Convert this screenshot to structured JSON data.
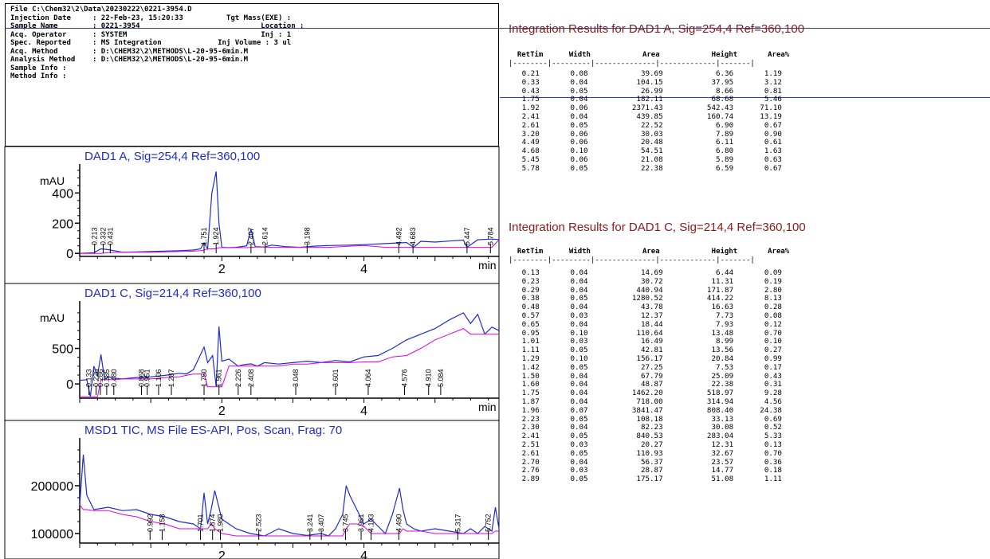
{
  "header": {
    "lines": [
      "File C:\\Chem32\\2\\Data\\20230222\\0221-3954.D",
      "Injection Date     : 22-Feb-23, 15:20:33          Tgt Mass(EXE) :",
      "Sample Name        : 0221-3954                            Location :",
      "Acq. Operator      : SYSTEM                               Inj : 1",
      "Spec. Reported     : MS Integration             Inj Volume : 3 ul",
      "Acq. Method        : D:\\CHEM32\\2\\METHODS\\L-20-95-6min.M",
      "Analysis Method    : D:\\CHEM32\\2\\METHODS\\L-20-95-6min.M",
      "Sample Info :",
      "Method Info :"
    ]
  },
  "colors": {
    "trace": "#1f2ccc",
    "baseline": "#e000e0",
    "title": "#1f2ccc",
    "table_title": "#8b1a1a",
    "divider": "#2c3fb0"
  },
  "chart_data": [
    {
      "type": "line",
      "title": "DAD1 A, Sig=254,4 Ref=360,100",
      "ylabel": "mAU",
      "xlabel": "min",
      "xlim": [
        0,
        5.9
      ],
      "ylim": [
        -20,
        560
      ],
      "yticks": [
        0,
        200,
        400
      ],
      "xticks": [
        2,
        4
      ],
      "series": [
        {
          "x": [
            0.0,
            0.2,
            0.3,
            0.4,
            0.6,
            0.8,
            1.0,
            1.2,
            1.4,
            1.6,
            1.7,
            1.75,
            1.8,
            1.86,
            1.92,
            1.96,
            2.0,
            2.1,
            2.2,
            2.35,
            2.41,
            2.47,
            2.6,
            2.7,
            2.9,
            3.1,
            3.3,
            3.5,
            3.8,
            4.0,
            4.3,
            4.6,
            4.7,
            4.8,
            5.0,
            5.2,
            5.4,
            5.45,
            5.6,
            5.8,
            5.9
          ],
          "y": [
            0,
            5,
            30,
            25,
            8,
            10,
            12,
            15,
            18,
            22,
            30,
            70,
            30,
            400,
            542,
            200,
            40,
            38,
            40,
            50,
            160,
            45,
            42,
            55,
            45,
            40,
            48,
            52,
            55,
            58,
            65,
            72,
            40,
            80,
            75,
            82,
            88,
            40,
            90,
            95,
            92
          ]
        }
      ],
      "peak_labels": [
        {
          "x": 0.21,
          "label": "0.213"
        },
        {
          "x": 0.33,
          "label": "0.332"
        },
        {
          "x": 0.43,
          "label": "0.431"
        },
        {
          "x": 1.75,
          "label": "1.751"
        },
        {
          "x": 1.92,
          "label": "1.924"
        },
        {
          "x": 2.41,
          "label": "2.407"
        },
        {
          "x": 2.61,
          "label": "2.614"
        },
        {
          "x": 3.2,
          "label": "3.198"
        },
        {
          "x": 4.49,
          "label": "4.492"
        },
        {
          "x": 4.69,
          "label": "4.683"
        },
        {
          "x": 5.45,
          "label": "5.447"
        },
        {
          "x": 5.78,
          "label": "5.784"
        }
      ]
    },
    {
      "type": "line",
      "title": "DAD1 C, Sig=214,4 Ref=360,100",
      "ylabel": "mAU",
      "xlabel": "min",
      "xlim": [
        0,
        5.9
      ],
      "ylim": [
        -200,
        1100
      ],
      "yticks": [
        0,
        500
      ],
      "xticks": [
        2,
        4
      ],
      "series": [
        {
          "x": [
            0.0,
            0.1,
            0.15,
            0.2,
            0.25,
            0.3,
            0.35,
            0.4,
            0.5,
            0.6,
            0.8,
            1.0,
            1.2,
            1.4,
            1.5,
            1.6,
            1.75,
            1.8,
            1.87,
            1.92,
            1.96,
            2.0,
            2.1,
            2.23,
            2.3,
            2.41,
            2.5,
            2.6,
            2.8,
            3.0,
            3.2,
            3.4,
            3.6,
            3.8,
            4.0,
            4.2,
            4.4,
            4.6,
            4.8,
            5.0,
            5.2,
            5.4,
            5.5,
            5.6,
            5.7,
            5.8,
            5.9
          ],
          "y": [
            50,
            60,
            -180,
            250,
            120,
            414,
            60,
            100,
            80,
            70,
            90,
            100,
            120,
            150,
            140,
            200,
            518,
            300,
            400,
            -40,
            808,
            320,
            350,
            250,
            270,
            283,
            250,
            300,
            280,
            300,
            320,
            300,
            330,
            310,
            380,
            400,
            500,
            620,
            700,
            780,
            900,
            1000,
            850,
            980,
            700,
            800,
            750
          ]
        }
      ],
      "peak_labels": [
        {
          "x": 0.13,
          "label": "0.133"
        },
        {
          "x": 0.23,
          "label": "0.226"
        },
        {
          "x": 0.29,
          "label": "0.286"
        },
        {
          "x": 0.38,
          "label": "0.385"
        },
        {
          "x": 0.48,
          "label": "0.480"
        },
        {
          "x": 0.87,
          "label": "0.868"
        },
        {
          "x": 0.95,
          "label": "0.951"
        },
        {
          "x": 1.11,
          "label": "1.106"
        },
        {
          "x": 1.29,
          "label": "1.287"
        },
        {
          "x": 1.75,
          "label": "1.750"
        },
        {
          "x": 1.96,
          "label": "1.961"
        },
        {
          "x": 2.23,
          "label": "2.226"
        },
        {
          "x": 2.41,
          "label": "2.408"
        },
        {
          "x": 3.04,
          "label": "3.048"
        },
        {
          "x": 3.6,
          "label": "3.601"
        },
        {
          "x": 4.06,
          "label": "4.064"
        },
        {
          "x": 4.57,
          "label": "4.576"
        },
        {
          "x": 4.91,
          "label": "4.910"
        },
        {
          "x": 5.08,
          "label": "5.084"
        }
      ]
    },
    {
      "type": "line",
      "title": "MSD1 TIC, MS File    ES-API, Pos, Scan, Frag: 70",
      "ylabel": "",
      "xlabel": "",
      "xlim": [
        0,
        5.9
      ],
      "ylim": [
        80000,
        290000
      ],
      "yticks": [
        100000,
        200000
      ],
      "xticks": [
        2,
        4
      ],
      "series": [
        {
          "x": [
            0.0,
            0.05,
            0.1,
            0.2,
            0.4,
            0.6,
            0.8,
            1.0,
            1.2,
            1.4,
            1.6,
            1.7,
            1.75,
            1.8,
            1.85,
            1.9,
            2.0,
            2.2,
            2.4,
            2.6,
            2.8,
            3.0,
            3.2,
            3.4,
            3.5,
            3.6,
            3.7,
            3.75,
            3.8,
            3.9,
            4.0,
            4.1,
            4.2,
            4.3,
            4.4,
            4.5,
            4.55,
            4.6,
            4.7,
            4.8,
            5.0,
            5.2,
            5.4,
            5.5,
            5.6,
            5.7,
            5.8,
            5.85,
            5.9
          ],
          "y": [
            160000,
            265000,
            180000,
            150000,
            155000,
            148000,
            150000,
            140000,
            135000,
            125000,
            120000,
            110000,
            185000,
            120000,
            150000,
            190000,
            130000,
            110000,
            100000,
            95000,
            110000,
            100000,
            96000,
            100000,
            95000,
            110000,
            140000,
            200000,
            180000,
            150000,
            120000,
            130000,
            115000,
            100000,
            140000,
            195000,
            150000,
            120000,
            110000,
            105000,
            110000,
            105000,
            100000,
            110000,
            100000,
            115000,
            105000,
            155000,
            110000
          ]
        }
      ],
      "peak_labels": [
        {
          "x": 0.99,
          "label": "0.992"
        },
        {
          "x": 1.16,
          "label": "1.158"
        },
        {
          "x": 1.7,
          "label": "1.701"
        },
        {
          "x": 1.87,
          "label": "1.874"
        },
        {
          "x": 1.98,
          "label": "1.980"
        },
        {
          "x": 2.52,
          "label": "2.523"
        },
        {
          "x": 3.24,
          "label": "3.241"
        },
        {
          "x": 3.4,
          "label": "3.407"
        },
        {
          "x": 3.74,
          "label": "3.745"
        },
        {
          "x": 3.96,
          "label": "3.961"
        },
        {
          "x": 4.1,
          "label": "4.103"
        },
        {
          "x": 4.49,
          "label": "4.490"
        },
        {
          "x": 5.32,
          "label": "5.317"
        },
        {
          "x": 5.75,
          "label": "5.752"
        }
      ]
    }
  ],
  "table_a": {
    "title": "Integration Results for DAD1 A, Sig=254,4 Ref=360,100",
    "header": "  RetTim      Width            Area            Height       Area%",
    "separator": "|--------|---------|--------------|-------------|-------|",
    "rows": [
      "   0.21       0.08            39.69            6.36       1.19",
      "   0.33       0.04           104.15           37.95       3.12",
      "   0.43       0.05            26.99            8.66       0.81",
      "   1.75       0.04           182.11           68.68       5.46",
      "   1.92       0.06          2371.43          542.43      71.10",
      "   2.41       0.04           439.85          160.74      13.19",
      "   2.61       0.05            22.52            6.90       0.67",
      "   3.20       0.06            30.03            7.89       0.90",
      "   4.49       0.06            20.48            6.11       0.61",
      "   4.68       0.10            54.51            6.80       1.63",
      "   5.45       0.06            21.08            5.89       0.63",
      "   5.78       0.05            22.38            6.59       0.67"
    ]
  },
  "table_c": {
    "title": "Integration Results for DAD1 C, Sig=214,4 Ref=360,100",
    "header": "  RetTim      Width            Area            Height       Area%",
    "separator": "|--------|---------|--------------|-------------|-------|",
    "rows": [
      "   0.13       0.04            14.69            6.44       0.09",
      "   0.23       0.04            30.72           11.31       0.19",
      "   0.29       0.04           440.94          171.87       2.80",
      "   0.38       0.05          1280.52          414.22       8.13",
      "   0.48       0.04            43.78           16.63       0.28",
      "   0.57       0.03            12.37            7.73       0.08",
      "   0.65       0.04            18.44            7.93       0.12",
      "   0.95       0.10           110.64           13.48       0.70",
      "   1.01       0.03            16.49            8.99       0.10",
      "   1.11       0.05            42.81           13.56       0.27",
      "   1.29       0.10           156.17           20.84       0.99",
      "   1.42       0.05            27.25            7.53       0.17",
      "   1.50       0.04            67.79           25.09       0.43",
      "   1.60       0.04            48.87           22.38       0.31",
      "   1.75       0.04          1462.20          518.97       9.28",
      "   1.87       0.04           718.00          314.94       4.56",
      "   1.96       0.07          3841.47          808.40      24.38",
      "   2.23       0.05           108.18           33.13       0.69",
      "   2.30       0.04            82.23           30.08       0.52",
      "   2.41       0.05           840.53          283.04       5.33",
      "   2.51       0.03            20.27           12.31       0.13",
      "   2.61       0.05           110.93           32.67       0.70",
      "   2.70       0.04            56.37           23.57       0.36",
      "   2.76       0.03            28.87           14.77       0.18",
      "   2.89       0.05           175.17           51.08       1.11"
    ]
  }
}
